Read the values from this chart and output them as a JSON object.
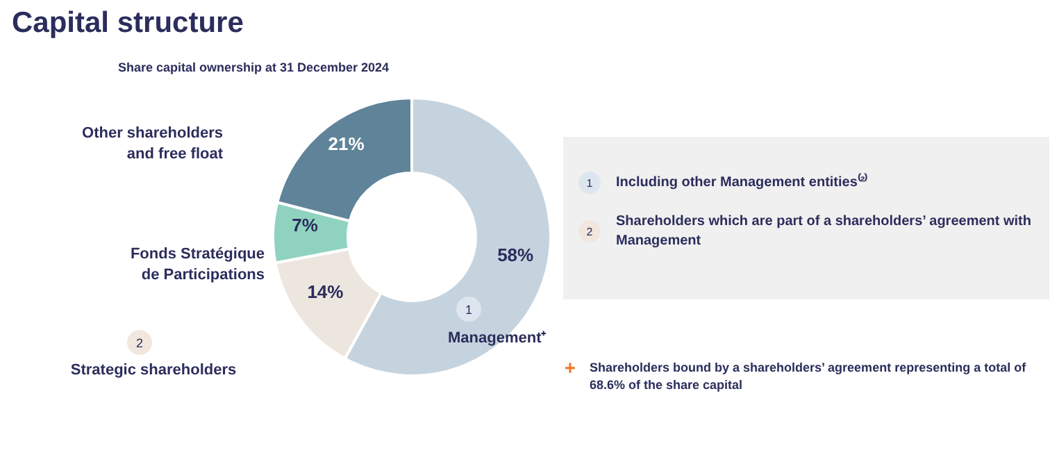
{
  "chart_data": {
    "type": "donut",
    "title": "Capital structure",
    "subtitle": "Share capital ownership at 31 December 2024",
    "categories": [
      "Management⁺",
      "Strategic shareholders",
      "Fonds Stratégique\nde Participations",
      "Other shareholders\nand free float"
    ],
    "values": [
      58,
      14,
      7,
      21
    ],
    "colors": [
      "#c5d3de",
      "#ede6df",
      "#8fd3bf",
      "#5f8399"
    ],
    "value_labels": [
      "58%",
      "14%",
      "7%",
      "21%"
    ],
    "annotations": [
      "1",
      "2",
      "Including other Management entities⁽²⁾",
      "Shareholders which are part of a shareholders’ agreement with\nManagement",
      "+",
      "Shareholders bound by a shareholders’ agreement representing a total of\n68.6% of the share capital"
    ]
  }
}
